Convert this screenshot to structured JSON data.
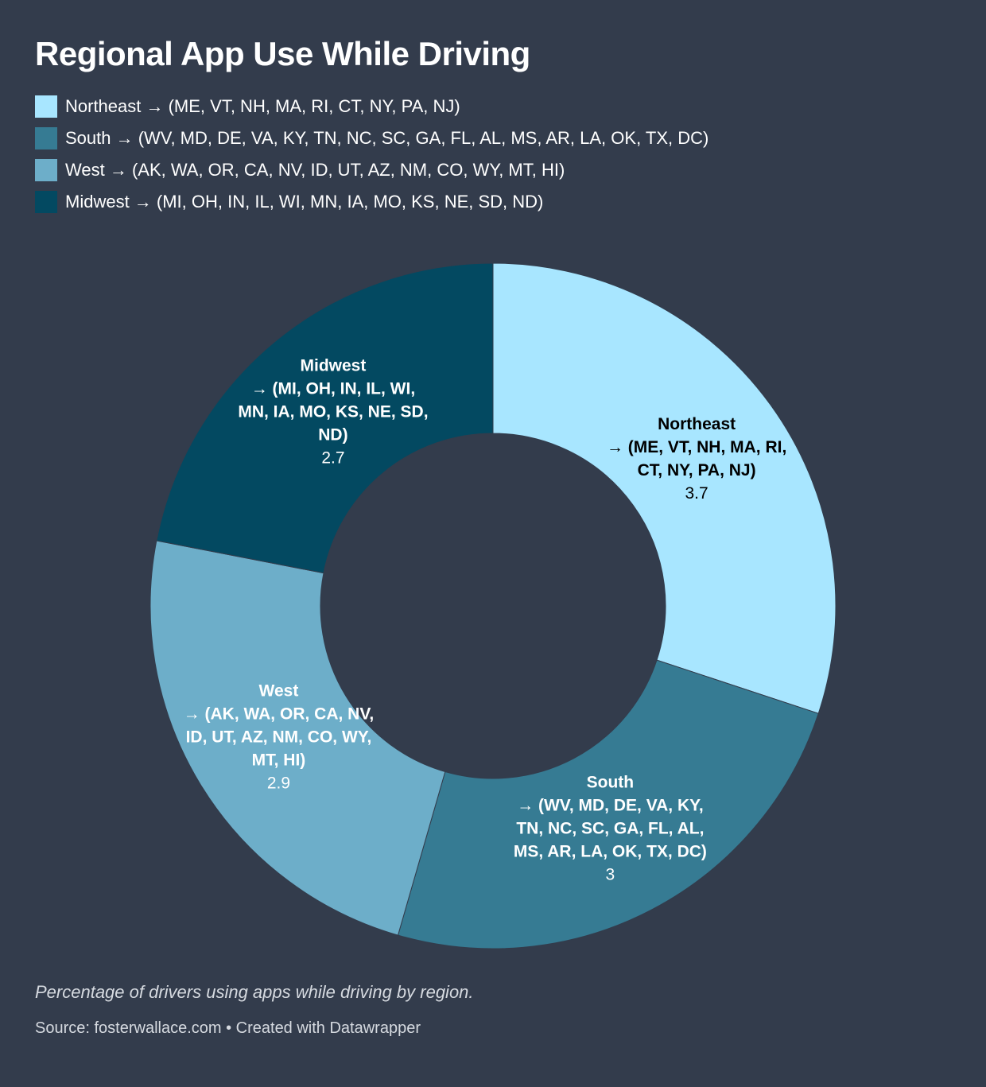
{
  "chart_data": {
    "type": "pie",
    "variant": "donut",
    "title": "Regional App Use While Driving",
    "legend_position": "top-left",
    "slices": [
      {
        "name": "Northeast",
        "detail": "→ (ME, VT, NH, MA, RI, CT, NY, PA, NJ)",
        "value": 3.7,
        "color": "#a8e6ff"
      },
      {
        "name": "South",
        "detail": "→ (WV, MD, DE, VA, KY, TN, NC, SC, GA, FL, AL, MS, AR, LA, OK, TX, DC)",
        "value": 3,
        "color": "#367b93"
      },
      {
        "name": "West",
        "detail": "→ (AK, WA, OR, CA, NV, ID, UT, AZ, NM, CO, WY, MT, HI)",
        "value": 2.9,
        "color": "#6daec9"
      },
      {
        "name": "Midwest",
        "detail": "→ (MI, OH, IN, IL, WI, MN, IA, MO, KS, NE, SD, ND)",
        "value": 2.7,
        "color": "#034961"
      }
    ]
  },
  "legend": [
    {
      "label": "Northeast → (ME, VT, NH, MA, RI, CT, NY, PA, NJ)"
    },
    {
      "label": "South → (WV, MD, DE, VA, KY, TN, NC, SC, GA, FL, AL, MS, AR, LA, OK, TX, DC)"
    },
    {
      "label": "West → (AK, WA, OR, CA, NV, ID, UT, AZ, NM, CO, WY, MT, HI)"
    },
    {
      "label": "Midwest → (MI, OH, IN, IL, WI, MN, IA, MO, KS, NE, SD, ND)"
    }
  ],
  "description": "Percentage of drivers using apps while driving by region.",
  "source": "Source: fosterwallace.com • Created with Datawrapper",
  "background": "#333c4c"
}
